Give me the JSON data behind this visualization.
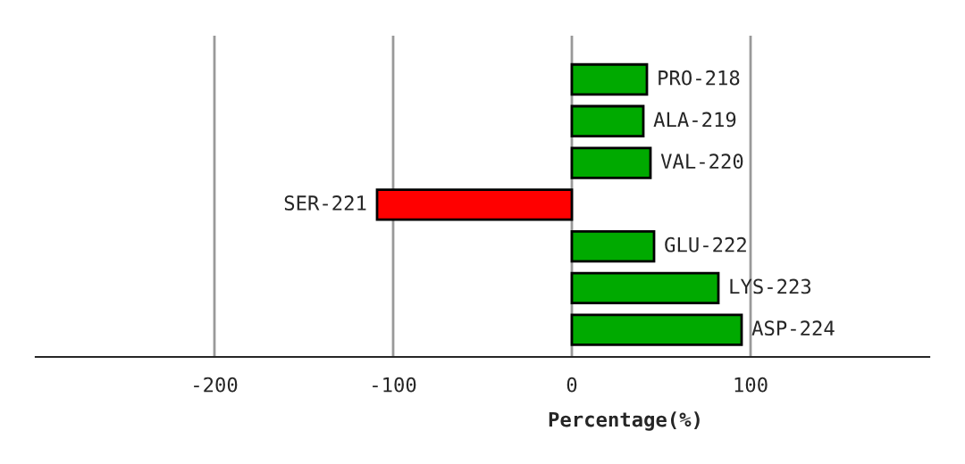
{
  "chart_data": {
    "type": "bar",
    "orientation": "horizontal",
    "xlabel": "Percentage(%)",
    "categories": [
      "PRO-218",
      "ALA-219",
      "VAL-220",
      "SER-221",
      "GLU-222",
      "LYS-223",
      "ASP-224"
    ],
    "values": [
      42,
      40,
      44,
      -109,
      46,
      82,
      95
    ],
    "colors": [
      "#00aa00",
      "#00aa00",
      "#00aa00",
      "#ff0000",
      "#00aa00",
      "#00aa00",
      "#00aa00"
    ],
    "xlim": [
      -300,
      200
    ],
    "xticks": [
      {
        "value": -200,
        "label": "-200"
      },
      {
        "value": -100,
        "label": "-100"
      },
      0,
      100
    ],
    "grid": "x"
  }
}
